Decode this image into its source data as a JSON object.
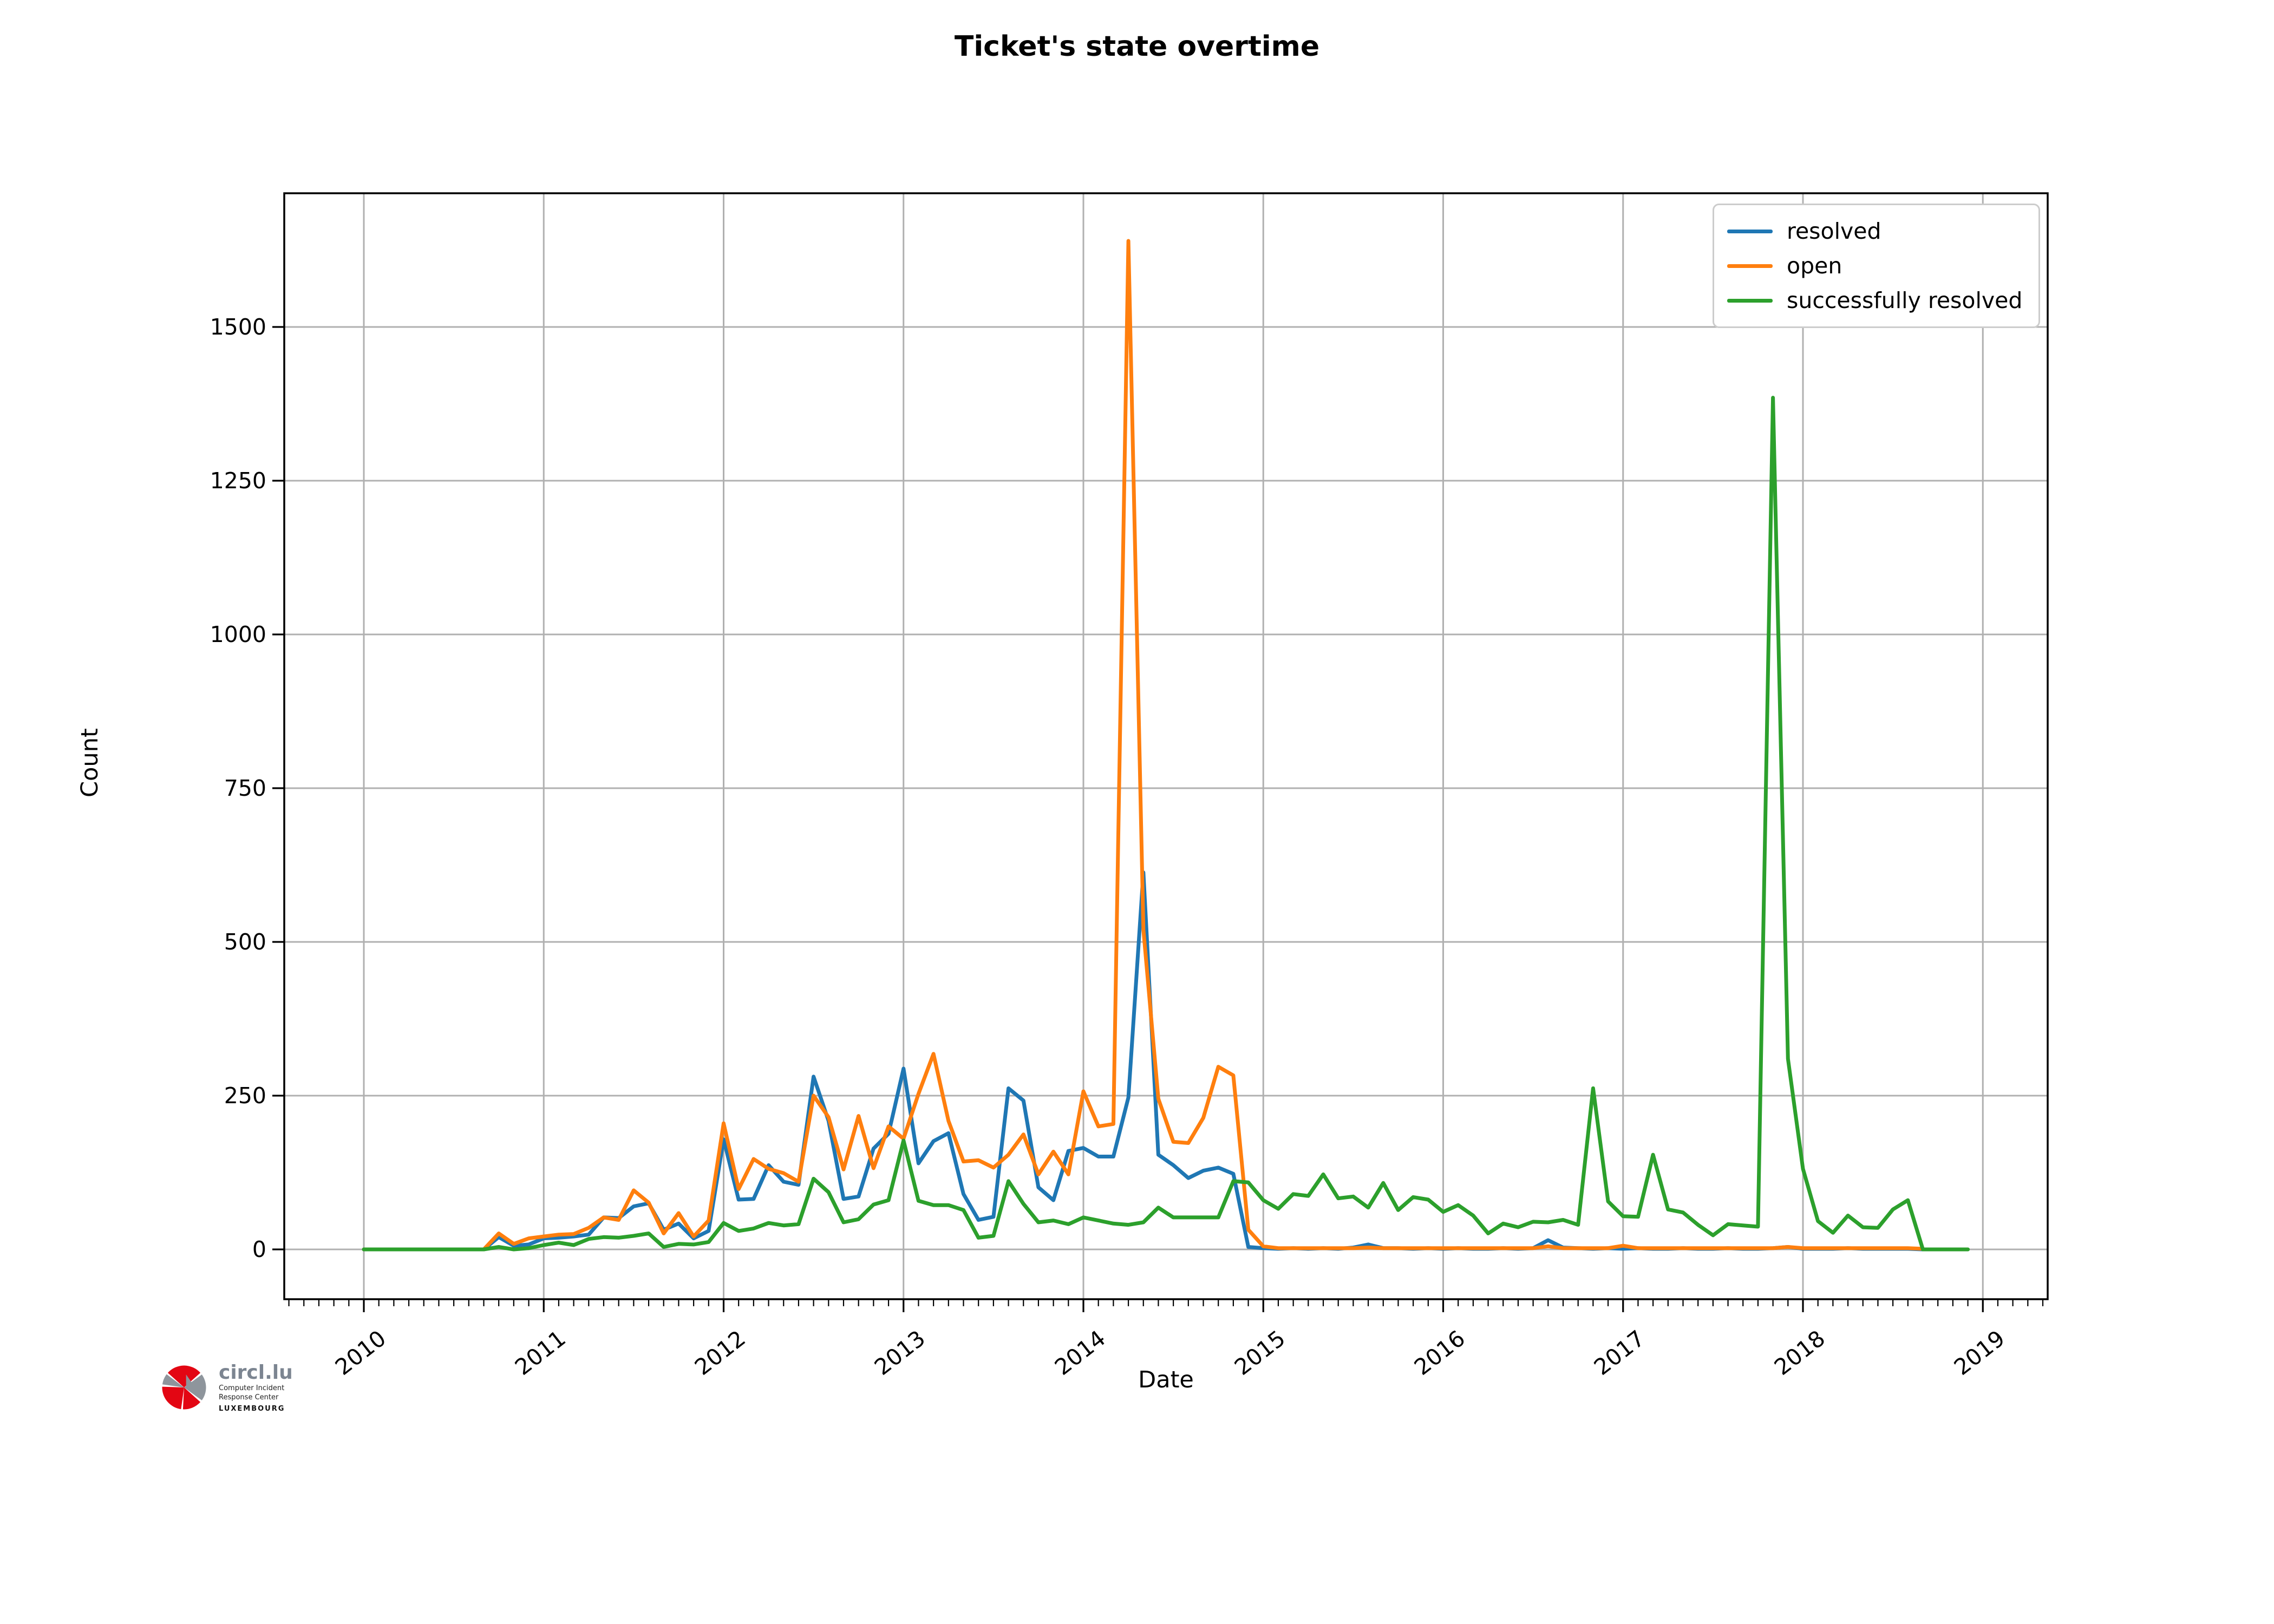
{
  "chart_data": {
    "type": "line",
    "title": "Ticket's state overtime",
    "xlabel": "Date",
    "ylabel": "Count",
    "x_tick_labels": [
      "2010",
      "2011",
      "2012",
      "2013",
      "2014",
      "2015",
      "2016",
      "2017",
      "2018",
      "2019"
    ],
    "y_tick_labels": [
      "0",
      "250",
      "500",
      "750",
      "1000",
      "1250",
      "1500"
    ],
    "x_start_month": "2010-01",
    "points_per_series": 108,
    "grid": true,
    "grid_color": "#b0b0b0",
    "legend_position": "upper right",
    "series": [
      {
        "name": "resolved",
        "color": "#1f77b4",
        "values": [
          0,
          0,
          0,
          0,
          0,
          0,
          0,
          0,
          0,
          20,
          6,
          8,
          18,
          19,
          21,
          24,
          52,
          51,
          70,
          75,
          32,
          42,
          18,
          30,
          179,
          81,
          82,
          137,
          110,
          105,
          281,
          209,
          82,
          86,
          164,
          188,
          294,
          140,
          176,
          189,
          90,
          48,
          53,
          262,
          242,
          101,
          80,
          160,
          165,
          151,
          151,
          247,
          613,
          154,
          137,
          116,
          128,
          133,
          123,
          4,
          2,
          1,
          2,
          1,
          2,
          1,
          3,
          8,
          2,
          2,
          1,
          2,
          1,
          2,
          1,
          1,
          2,
          1,
          2,
          15,
          3,
          2,
          1,
          2,
          1,
          2,
          1,
          1,
          2,
          1,
          1,
          2,
          1,
          1,
          2,
          4,
          1,
          1,
          1,
          2,
          1,
          1,
          1,
          1,
          0,
          null,
          null,
          null
        ]
      },
      {
        "name": "open",
        "color": "#ff7f0e",
        "values": [
          0,
          0,
          0,
          0,
          0,
          0,
          0,
          0,
          0,
          26,
          9,
          18,
          21,
          24,
          25,
          35,
          52,
          48,
          96,
          76,
          26,
          59,
          21,
          47,
          205,
          98,
          147,
          131,
          124,
          110,
          250,
          215,
          130,
          217,
          132,
          200,
          180,
          253,
          318,
          209,
          143,
          145,
          133,
          154,
          187,
          122,
          159,
          122,
          257,
          200,
          204,
          1640,
          520,
          245,
          175,
          173,
          214,
          297,
          283,
          32,
          5,
          2,
          2,
          2,
          2,
          2,
          2,
          3,
          2,
          2,
          2,
          2,
          2,
          2,
          2,
          2,
          2,
          2,
          2,
          5,
          2,
          2,
          2,
          2,
          6,
          2,
          2,
          2,
          2,
          2,
          2,
          2,
          2,
          2,
          2,
          4,
          2,
          2,
          2,
          2,
          2,
          2,
          2,
          2,
          1,
          null,
          null,
          null
        ]
      },
      {
        "name": "successfully resolved",
        "color": "#2ca02c",
        "values": [
          0,
          0,
          0,
          0,
          0,
          0,
          0,
          0,
          0,
          4,
          0,
          2,
          7,
          11,
          7,
          17,
          20,
          19,
          22,
          26,
          4,
          9,
          8,
          12,
          43,
          30,
          34,
          43,
          39,
          41,
          115,
          93,
          44,
          49,
          73,
          80,
          177,
          79,
          72,
          72,
          64,
          19,
          22,
          111,
          74,
          44,
          47,
          41,
          52,
          47,
          42,
          40,
          44,
          68,
          52,
          52,
          52,
          52,
          111,
          109,
          80,
          66,
          90,
          87,
          122,
          83,
          86,
          68,
          108,
          64,
          85,
          81,
          61,
          72,
          55,
          26,
          42,
          36,
          45,
          44,
          48,
          40,
          262,
          78,
          54,
          53,
          154,
          65,
          60,
          40,
          23,
          41,
          39,
          37,
          1385,
          310,
          131,
          46,
          27,
          55,
          36,
          35,
          65,
          80,
          0,
          0,
          0,
          0
        ]
      }
    ]
  },
  "logo": {
    "brand": "circl.lu",
    "sub1": "Computer Incident",
    "sub2": "Response Center",
    "sub3": "LUXEMBOURG",
    "red": "#e30613",
    "gray": "#8e959c"
  }
}
